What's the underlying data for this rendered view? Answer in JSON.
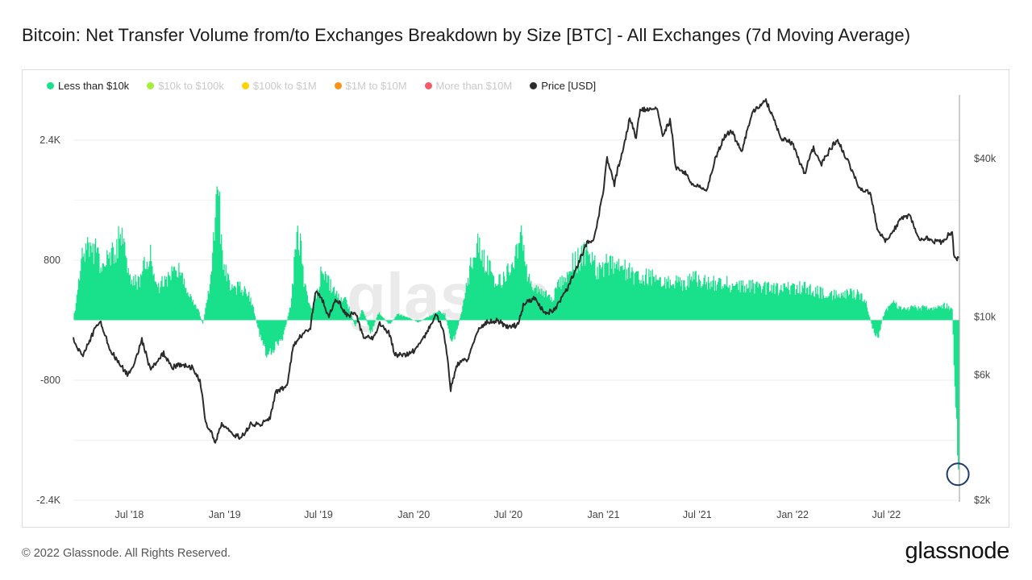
{
  "header": {
    "title": "Bitcoin: Net Transfer Volume from/to Exchanges Breakdown by Size [BTC] - All Exchanges (7d Moving Average)"
  },
  "legend": [
    {
      "label": "Less than $10k",
      "color": "#19e08a",
      "active": true
    },
    {
      "label": "$10k to $100k",
      "color": "#a5ef3c",
      "active": false
    },
    {
      "label": "$100k to $1M",
      "color": "#ffd200",
      "active": false
    },
    {
      "label": "$1M to $10M",
      "color": "#f7931a",
      "active": false
    },
    {
      "label": "More than $10M",
      "color": "#f45b69",
      "active": false
    },
    {
      "label": "Price [USD]",
      "color": "#2b2b2b",
      "active": true
    }
  ],
  "watermark": "glassnode",
  "footer": {
    "copyright": "© 2022 Glassnode. All Rights Reserved.",
    "brand": "glassnode"
  },
  "chart_data": {
    "type": "area",
    "title": "Bitcoin: Net Transfer Volume from/to Exchanges Breakdown by Size [BTC] - All Exchanges (7d Moving Average)",
    "x_ticks": [
      "Jul '18",
      "Jan '19",
      "Jul '19",
      "Jan '20",
      "Jul '20",
      "Jan '21",
      "Jul '21",
      "Jan '22",
      "Jul '22"
    ],
    "y_left": {
      "ticks": [
        "2.4K",
        "800",
        "-800",
        "-2.4K"
      ],
      "tick_values": [
        2400,
        800,
        -800,
        -2400
      ],
      "range": [
        -2400,
        3000
      ]
    },
    "y_right": {
      "scale": "log",
      "ticks": [
        "$40k",
        "$10k",
        "$6k",
        "$2k"
      ],
      "tick_values": [
        40000,
        10000,
        6000,
        2000
      ],
      "range": [
        2000,
        70000
      ]
    },
    "grid": true,
    "legend_position": "top-left",
    "series": [
      {
        "name": "Less than $10k",
        "axis": "left",
        "color": "#19e08a",
        "points": [
          [
            "2018-03-15",
            0
          ],
          [
            "2018-04-01",
            800
          ],
          [
            "2018-04-20",
            1000
          ],
          [
            "2018-05-10",
            700
          ],
          [
            "2018-06-01",
            900
          ],
          [
            "2018-06-15",
            1100
          ],
          [
            "2018-07-01",
            600
          ],
          [
            "2018-07-20",
            500
          ],
          [
            "2018-08-10",
            950
          ],
          [
            "2018-08-25",
            400
          ],
          [
            "2018-09-15",
            600
          ],
          [
            "2018-10-01",
            750
          ],
          [
            "2018-10-20",
            400
          ],
          [
            "2018-11-10",
            150
          ],
          [
            "2018-11-20",
            -50
          ],
          [
            "2018-12-05",
            500
          ],
          [
            "2018-12-18",
            1900
          ],
          [
            "2018-12-28",
            800
          ],
          [
            "2019-01-15",
            400
          ],
          [
            "2019-02-01",
            450
          ],
          [
            "2019-02-20",
            300
          ],
          [
            "2019-03-10",
            -200
          ],
          [
            "2019-03-25",
            -450
          ],
          [
            "2019-04-10",
            -350
          ],
          [
            "2019-04-25",
            -200
          ],
          [
            "2019-05-10",
            250
          ],
          [
            "2019-05-22",
            1300
          ],
          [
            "2019-06-05",
            450
          ],
          [
            "2019-06-20",
            100
          ],
          [
            "2019-07-05",
            600
          ],
          [
            "2019-07-20",
            500
          ],
          [
            "2019-08-10",
            300
          ],
          [
            "2019-08-25",
            250
          ],
          [
            "2019-09-10",
            -80
          ],
          [
            "2019-09-25",
            150
          ],
          [
            "2019-10-10",
            -180
          ],
          [
            "2019-10-25",
            100
          ],
          [
            "2019-11-15",
            -60
          ],
          [
            "2019-12-01",
            80
          ],
          [
            "2019-12-20",
            40
          ],
          [
            "2020-01-10",
            -30
          ],
          [
            "2020-02-01",
            60
          ],
          [
            "2020-02-20",
            120
          ],
          [
            "2020-03-01",
            80
          ],
          [
            "2020-03-15",
            -300
          ],
          [
            "2020-03-25",
            -120
          ],
          [
            "2020-04-05",
            200
          ],
          [
            "2020-04-20",
            700
          ],
          [
            "2020-05-05",
            1100
          ],
          [
            "2020-05-15",
            800
          ],
          [
            "2020-05-28",
            650
          ],
          [
            "2020-06-10",
            480
          ],
          [
            "2020-06-25",
            550
          ],
          [
            "2020-07-10",
            800
          ],
          [
            "2020-07-25",
            1100
          ],
          [
            "2020-08-10",
            550
          ],
          [
            "2020-08-25",
            400
          ],
          [
            "2020-09-10",
            350
          ],
          [
            "2020-09-25",
            300
          ],
          [
            "2020-10-10",
            500
          ],
          [
            "2020-10-25",
            650
          ],
          [
            "2020-11-10",
            800
          ],
          [
            "2020-11-25",
            900
          ],
          [
            "2020-12-10",
            750
          ],
          [
            "2020-12-25",
            650
          ],
          [
            "2021-01-10",
            750
          ],
          [
            "2021-01-25",
            800
          ],
          [
            "2021-02-10",
            700
          ],
          [
            "2021-02-25",
            600
          ],
          [
            "2021-03-15",
            580
          ],
          [
            "2021-04-05",
            560
          ],
          [
            "2021-05-01",
            520
          ],
          [
            "2021-06-01",
            480
          ],
          [
            "2021-07-01",
            550
          ],
          [
            "2021-08-01",
            500
          ],
          [
            "2021-09-01",
            480
          ],
          [
            "2021-10-01",
            450
          ],
          [
            "2021-11-01",
            430
          ],
          [
            "2021-12-01",
            420
          ],
          [
            "2022-01-01",
            440
          ],
          [
            "2022-02-01",
            410
          ],
          [
            "2022-03-01",
            360
          ],
          [
            "2022-04-01",
            330
          ],
          [
            "2022-05-01",
            350
          ],
          [
            "2022-05-20",
            300
          ],
          [
            "2022-06-05",
            -120
          ],
          [
            "2022-06-15",
            -250
          ],
          [
            "2022-06-25",
            60
          ],
          [
            "2022-07-10",
            250
          ],
          [
            "2022-08-01",
            150
          ],
          [
            "2022-09-01",
            170
          ],
          [
            "2022-10-01",
            160
          ],
          [
            "2022-10-25",
            200
          ],
          [
            "2022-11-05",
            150
          ],
          [
            "2022-11-09",
            -600
          ],
          [
            "2022-11-13",
            -1200
          ],
          [
            "2022-11-16",
            -1900
          ],
          [
            "2022-11-18",
            -2000
          ]
        ]
      },
      {
        "name": "Price [USD]",
        "axis": "right",
        "color": "#2b2b2b",
        "points": [
          [
            "2018-03-15",
            8300
          ],
          [
            "2018-04-01",
            7000
          ],
          [
            "2018-04-20",
            8500
          ],
          [
            "2018-05-05",
            9700
          ],
          [
            "2018-05-25",
            7500
          ],
          [
            "2018-06-10",
            6700
          ],
          [
            "2018-06-28",
            6000
          ],
          [
            "2018-07-10",
            6500
          ],
          [
            "2018-07-25",
            8200
          ],
          [
            "2018-08-10",
            6300
          ],
          [
            "2018-08-25",
            6700
          ],
          [
            "2018-09-05",
            7300
          ],
          [
            "2018-09-20",
            6400
          ],
          [
            "2018-10-10",
            6600
          ],
          [
            "2018-11-01",
            6400
          ],
          [
            "2018-11-15",
            5600
          ],
          [
            "2018-11-25",
            4000
          ],
          [
            "2018-12-15",
            3300
          ],
          [
            "2018-12-25",
            3900
          ],
          [
            "2019-01-15",
            3600
          ],
          [
            "2019-02-01",
            3450
          ],
          [
            "2019-02-20",
            3900
          ],
          [
            "2019-03-10",
            3900
          ],
          [
            "2019-03-30",
            4100
          ],
          [
            "2019-04-10",
            5200
          ],
          [
            "2019-05-01",
            5400
          ],
          [
            "2019-05-15",
            7900
          ],
          [
            "2019-06-01",
            8600
          ],
          [
            "2019-06-15",
            9000
          ],
          [
            "2019-06-26",
            12500
          ],
          [
            "2019-07-10",
            11500
          ],
          [
            "2019-07-20",
            10000
          ],
          [
            "2019-08-05",
            11700
          ],
          [
            "2019-08-25",
            10100
          ],
          [
            "2019-09-10",
            10300
          ],
          [
            "2019-09-25",
            8500
          ],
          [
            "2019-10-15",
            8200
          ],
          [
            "2019-10-27",
            9500
          ],
          [
            "2019-11-15",
            8600
          ],
          [
            "2019-11-25",
            7200
          ],
          [
            "2019-12-15",
            7100
          ],
          [
            "2020-01-05",
            7500
          ],
          [
            "2020-01-25",
            8600
          ],
          [
            "2020-02-13",
            10300
          ],
          [
            "2020-02-28",
            8700
          ],
          [
            "2020-03-12",
            5300
          ],
          [
            "2020-03-25",
            6600
          ],
          [
            "2020-04-15",
            6900
          ],
          [
            "2020-05-01",
            8700
          ],
          [
            "2020-05-20",
            9500
          ],
          [
            "2020-06-10",
            9700
          ],
          [
            "2020-06-30",
            9150
          ],
          [
            "2020-07-20",
            9300
          ],
          [
            "2020-08-01",
            11300
          ],
          [
            "2020-08-20",
            11800
          ],
          [
            "2020-09-10",
            10300
          ],
          [
            "2020-10-01",
            10700
          ],
          [
            "2020-10-25",
            13000
          ],
          [
            "2020-11-10",
            15300
          ],
          [
            "2020-11-30",
            19000
          ],
          [
            "2020-12-15",
            20000
          ],
          [
            "2020-12-31",
            29000
          ],
          [
            "2021-01-08",
            40000
          ],
          [
            "2021-01-22",
            32000
          ],
          [
            "2021-02-10",
            45000
          ],
          [
            "2021-02-21",
            57000
          ],
          [
            "2021-03-05",
            48000
          ],
          [
            "2021-03-13",
            61000
          ],
          [
            "2021-04-14",
            63500
          ],
          [
            "2021-04-25",
            49000
          ],
          [
            "2021-05-10",
            56000
          ],
          [
            "2021-05-20",
            37000
          ],
          [
            "2021-06-10",
            35000
          ],
          [
            "2021-06-22",
            32000
          ],
          [
            "2021-07-20",
            30000
          ],
          [
            "2021-08-05",
            40000
          ],
          [
            "2021-08-23",
            49000
          ],
          [
            "2021-09-05",
            51000
          ],
          [
            "2021-09-25",
            42000
          ],
          [
            "2021-10-15",
            60000
          ],
          [
            "2021-11-10",
            67000
          ],
          [
            "2021-11-25",
            57000
          ],
          [
            "2021-12-10",
            48000
          ],
          [
            "2021-12-31",
            46000
          ],
          [
            "2022-01-10",
            41000
          ],
          [
            "2022-01-24",
            35000
          ],
          [
            "2022-02-10",
            44000
          ],
          [
            "2022-02-25",
            38000
          ],
          [
            "2022-03-28",
            47500
          ],
          [
            "2022-04-15",
            40000
          ],
          [
            "2022-05-10",
            31000
          ],
          [
            "2022-05-30",
            30000
          ],
          [
            "2022-06-14",
            21000
          ],
          [
            "2022-06-30",
            19500
          ],
          [
            "2022-07-10",
            20500
          ],
          [
            "2022-07-30",
            23800
          ],
          [
            "2022-08-15",
            24300
          ],
          [
            "2022-08-30",
            20000
          ],
          [
            "2022-09-15",
            20000
          ],
          [
            "2022-09-30",
            19400
          ],
          [
            "2022-10-15",
            19200
          ],
          [
            "2022-10-30",
            20600
          ],
          [
            "2022-11-05",
            21200
          ],
          [
            "2022-11-09",
            16500
          ],
          [
            "2022-11-18",
            16700
          ]
        ]
      }
    ],
    "annotations": [
      {
        "type": "circle",
        "x": "2022-11-16",
        "y": -2000,
        "color": "#1f3a6e"
      }
    ]
  }
}
